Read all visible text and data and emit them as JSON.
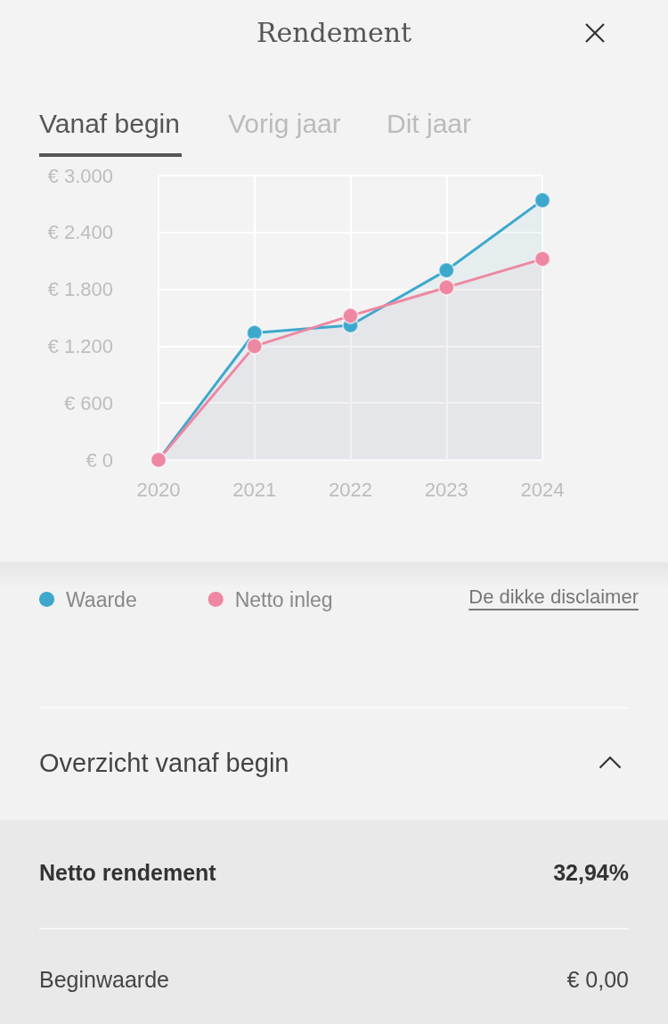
{
  "chart_data": {
    "type": "area",
    "title": "Rendement",
    "annotations": [
      "Vanaf begin",
      "Vorig jaar",
      "Dit jaar",
      "De dikke disclaimer",
      "Overzicht vanaf begin",
      "Netto rendement",
      "32,94%",
      "Beginwaarde",
      "€ 0,00"
    ],
    "categories": [
      "2020",
      "2021",
      "2022",
      "2023",
      "2024"
    ],
    "series": [
      {
        "name": "Waarde",
        "color": "#3ea8cc",
        "values": [
          0,
          1340,
          1420,
          2000,
          2740
        ]
      },
      {
        "name": "Netto inleg",
        "color": "#ee87a2",
        "values": [
          0,
          1200,
          1520,
          1820,
          2120
        ]
      }
    ],
    "ylim": [
      0,
      3000
    ],
    "yticks": [
      {
        "value": 0,
        "label": "€ 0"
      },
      {
        "value": 600,
        "label": "€ 600"
      },
      {
        "value": 1200,
        "label": "€ 1.200"
      },
      {
        "value": 1800,
        "label": "€ 1.800"
      },
      {
        "value": 2400,
        "label": "€ 2.400"
      },
      {
        "value": 3000,
        "label": "€ 3.000"
      }
    ],
    "grid": true,
    "legend": "bottom",
    "marker": "circle"
  }
}
